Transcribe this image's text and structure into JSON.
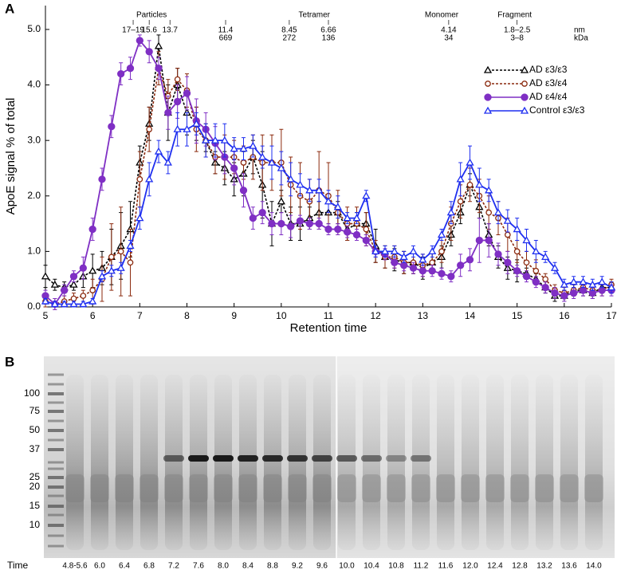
{
  "chart_data": {
    "type": "line",
    "panel_label": "A",
    "xlabel": "Retention time",
    "ylabel": "ApoE signal % of total",
    "xlim": [
      5,
      17
    ],
    "ylim": [
      0,
      5.43
    ],
    "xticks": [
      5,
      6,
      7,
      8,
      9,
      10,
      11,
      12,
      13,
      14,
      15,
      16,
      17
    ],
    "yticks": [
      {
        "value": 0,
        "label": "0.0"
      },
      {
        "value": 1,
        "label": "1.0"
      },
      {
        "value": 2,
        "label": "2.0"
      },
      {
        "value": 3,
        "label": "3.0"
      },
      {
        "value": 4,
        "label": "4.0"
      },
      {
        "value": 5,
        "label": "5.0"
      }
    ],
    "legend": "upper right",
    "groups": [
      {
        "label": "Particles",
        "x": 7.25
      },
      {
        "label": "Tetramer",
        "x": 10.7
      },
      {
        "label": "Monomer",
        "x": 13.4
      },
      {
        "label": "Fragment",
        "x": 14.95
      }
    ],
    "size_markers": [
      {
        "x": 6.86,
        "nm": "17–19"
      },
      {
        "x": 7.2,
        "nm": "15.6"
      },
      {
        "x": 7.64,
        "nm": "13.7"
      },
      {
        "x": 8.82,
        "nm": "11.4",
        "kda": "669"
      },
      {
        "x": 10.17,
        "nm": "8.45",
        "kda": "272"
      },
      {
        "x": 11.0,
        "nm": "6.66",
        "kda": "136"
      },
      {
        "x": 13.55,
        "nm": "4.14",
        "kda": "34"
      },
      {
        "x": 15.0,
        "nm": "1.8–2.5",
        "kda": "3–8"
      }
    ],
    "size_units": [
      "nm",
      "kDa"
    ],
    "x": [
      5,
      5.2,
      5.4,
      5.6,
      5.8,
      6,
      6.2,
      6.4,
      6.6,
      6.8,
      7,
      7.2,
      7.4,
      7.6,
      7.8,
      8,
      8.2,
      8.4,
      8.6,
      8.8,
      9,
      9.2,
      9.4,
      9.6,
      9.8,
      10,
      10.2,
      10.4,
      10.6,
      10.8,
      11,
      11.2,
      11.4,
      11.6,
      11.8,
      12,
      12.2,
      12.4,
      12.6,
      12.8,
      13,
      13.2,
      13.4,
      13.6,
      13.8,
      14,
      14.2,
      14.4,
      14.6,
      14.8,
      15,
      15.2,
      15.4,
      15.6,
      15.8,
      16,
      16.2,
      16.4,
      16.6,
      16.8,
      17
    ],
    "series": [
      {
        "name": "AD ε3/ε3",
        "color": "#000000",
        "marker": "triangle-open",
        "dashed": true,
        "values": [
          0.55,
          0.4,
          0.35,
          0.4,
          0.55,
          0.65,
          0.7,
          0.9,
          1.1,
          1.4,
          2.6,
          3.3,
          4.7,
          3.5,
          4.0,
          3.5,
          3.3,
          3.0,
          2.6,
          2.5,
          2.3,
          2.4,
          2.7,
          2.2,
          1.5,
          1.9,
          1.5,
          1.5,
          1.6,
          1.7,
          1.7,
          1.7,
          1.4,
          1.5,
          1.5,
          1.1,
          0.9,
          0.85,
          0.8,
          0.8,
          0.7,
          0.8,
          0.9,
          1.3,
          1.7,
          2.2,
          1.8,
          1.3,
          0.9,
          0.7,
          0.65,
          0.6,
          0.5,
          0.35,
          0.2,
          0.2,
          0.3,
          0.3,
          0.25,
          0.35,
          0.35
        ],
        "errors": [
          0.2,
          0.1,
          0.1,
          0.1,
          0.2,
          0.3,
          0.3,
          0.5,
          0.6,
          0.5,
          0.3,
          0.3,
          0.2,
          0.5,
          0.3,
          0.4,
          0.3,
          0.2,
          0.2,
          0.3,
          0.3,
          0.4,
          0.3,
          0.6,
          0.4,
          0.2,
          0.3,
          0.3,
          0.2,
          0.2,
          0.2,
          0.2,
          0.2,
          0.2,
          0.2,
          0.3,
          0.2,
          0.2,
          0.2,
          0.2,
          0.2,
          0.2,
          0.2,
          0.2,
          0.2,
          0.2,
          0.2,
          0.2,
          0.2,
          0.2,
          0.2,
          0.1,
          0.1,
          0.1,
          0.1,
          0.1,
          0.1,
          0.1,
          0.1,
          0.1,
          0.1
        ]
      },
      {
        "name": "AD ε3/ε4",
        "color": "#8b2a0e",
        "marker": "circle-open",
        "dashed": true,
        "values": [
          0.1,
          0.05,
          0.1,
          0.15,
          0.2,
          0.3,
          0.5,
          0.9,
          1.0,
          0.8,
          2.3,
          3.2,
          4.3,
          3.8,
          4.1,
          3.9,
          3.2,
          3.0,
          2.7,
          2.7,
          2.7,
          2.6,
          2.7,
          2.6,
          2.6,
          2.6,
          2.2,
          2.0,
          1.9,
          2.1,
          2.0,
          1.7,
          1.5,
          1.5,
          1.4,
          1.0,
          0.9,
          0.9,
          0.8,
          0.8,
          0.75,
          0.8,
          1.0,
          1.5,
          1.9,
          2.2,
          2.0,
          1.7,
          1.6,
          1.3,
          1.0,
          0.8,
          0.65,
          0.5,
          0.3,
          0.25,
          0.3,
          0.35,
          0.3,
          0.3,
          0.4
        ],
        "errors": [
          0.1,
          0.1,
          0.1,
          0.1,
          0.1,
          0.2,
          0.4,
          0.6,
          0.8,
          0.6,
          0.5,
          0.4,
          0.3,
          0.3,
          0.2,
          0.3,
          0.4,
          0.3,
          0.3,
          0.4,
          0.3,
          0.3,
          0.4,
          0.5,
          0.5,
          0.6,
          0.5,
          0.6,
          0.4,
          0.7,
          0.6,
          0.4,
          0.3,
          0.3,
          0.3,
          0.2,
          0.2,
          0.2,
          0.2,
          0.2,
          0.2,
          0.2,
          0.2,
          0.3,
          0.3,
          0.3,
          0.3,
          0.3,
          0.3,
          0.3,
          0.2,
          0.2,
          0.2,
          0.1,
          0.1,
          0.1,
          0.1,
          0.1,
          0.1,
          0.1,
          0.1
        ]
      },
      {
        "name": "AD ε4/ε4",
        "color": "#7f2fc4",
        "marker": "circle",
        "dashed": false,
        "values": [
          0.2,
          0.05,
          0.3,
          0.55,
          0.7,
          1.4,
          2.3,
          3.25,
          4.2,
          4.3,
          4.8,
          4.6,
          4.3,
          3.5,
          3.7,
          3.85,
          3.35,
          3.2,
          2.95,
          2.7,
          2.5,
          2.1,
          1.6,
          1.7,
          1.5,
          1.5,
          1.45,
          1.55,
          1.5,
          1.5,
          1.4,
          1.4,
          1.35,
          1.3,
          1.2,
          1.0,
          0.95,
          0.8,
          0.75,
          0.7,
          0.65,
          0.65,
          0.6,
          0.55,
          0.75,
          0.85,
          1.2,
          1.2,
          0.95,
          0.8,
          0.65,
          0.55,
          0.45,
          0.35,
          0.25,
          0.2,
          0.25,
          0.3,
          0.25,
          0.3,
          0.3
        ],
        "errors": [
          0.1,
          0.1,
          0.1,
          0.1,
          0.2,
          0.2,
          0.2,
          0.2,
          0.2,
          0.2,
          0.1,
          0.2,
          0.2,
          0.3,
          0.3,
          0.3,
          0.4,
          0.3,
          0.3,
          0.3,
          0.3,
          0.3,
          0.2,
          0.2,
          0.2,
          0.2,
          0.2,
          0.1,
          0.1,
          0.1,
          0.1,
          0.1,
          0.1,
          0.1,
          0.1,
          0.1,
          0.1,
          0.1,
          0.1,
          0.1,
          0.1,
          0.1,
          0.1,
          0.1,
          0.2,
          0.2,
          0.4,
          0.3,
          0.2,
          0.2,
          0.1,
          0.1,
          0.1,
          0.1,
          0.1,
          0.1,
          0.1,
          0.1,
          0.1,
          0.1,
          0.1
        ]
      },
      {
        "name": "Control ε3/ε3",
        "color": "#1f2ff0",
        "marker": "triangle-open",
        "dashed": false,
        "values": [
          0.1,
          0.05,
          0.05,
          0.05,
          0.05,
          0.1,
          0.55,
          0.65,
          0.7,
          1.1,
          1.6,
          2.3,
          2.8,
          2.6,
          3.2,
          3.2,
          3.3,
          3.0,
          3.0,
          3.0,
          2.85,
          2.85,
          2.9,
          2.7,
          2.6,
          2.5,
          2.3,
          2.2,
          2.1,
          2.1,
          1.9,
          1.8,
          1.6,
          1.6,
          2.0,
          1.0,
          1.0,
          1.0,
          0.9,
          1.0,
          0.85,
          1.0,
          1.3,
          1.7,
          2.3,
          2.6,
          2.2,
          2.1,
          1.7,
          1.55,
          1.4,
          1.2,
          1.0,
          0.9,
          0.7,
          0.4,
          0.45,
          0.45,
          0.4,
          0.45,
          0.35
        ],
        "errors": [
          0.05,
          0.05,
          0.05,
          0.05,
          0.05,
          0.05,
          0.1,
          0.1,
          0.1,
          0.1,
          0.2,
          0.3,
          0.2,
          0.2,
          0.3,
          0.3,
          0.2,
          0.3,
          0.3,
          0.3,
          0.2,
          0.2,
          0.2,
          0.2,
          0.3,
          0.3,
          0.3,
          0.2,
          0.2,
          0.2,
          0.2,
          0.2,
          0.1,
          0.1,
          0.1,
          0.1,
          0.1,
          0.1,
          0.1,
          0.1,
          0.1,
          0.1,
          0.1,
          0.2,
          0.3,
          0.3,
          0.3,
          0.2,
          0.2,
          0.2,
          0.2,
          0.2,
          0.2,
          0.1,
          0.1,
          0.1,
          0.1,
          0.1,
          0.1,
          0.1,
          0.1
        ]
      }
    ]
  },
  "gel": {
    "panel_label": "B",
    "ladder": [
      "100",
      "75",
      "50",
      "37",
      "25",
      "20",
      "15",
      "10"
    ],
    "time_label": "Time",
    "lanes": [
      "4.8-5.6",
      "6.0",
      "6.4",
      "6.8",
      "7.2",
      "7.6",
      "8.0",
      "8.4",
      "8.8",
      "9.2",
      "9.6",
      "10.0",
      "10.4",
      "10.8",
      "11.2",
      "11.6",
      "12.0",
      "12.4",
      "12.8",
      "13.2",
      "13.6",
      "14.0"
    ]
  }
}
